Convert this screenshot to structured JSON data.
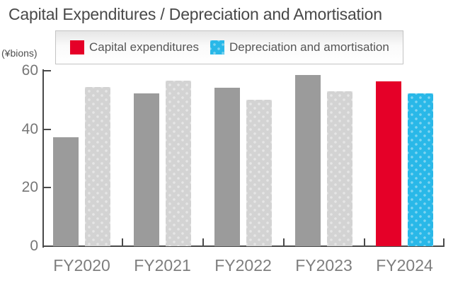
{
  "title": "Capital Expenditures / Depreciation and Amortisation",
  "unit_label": "(¥bions)",
  "colors": {
    "capex": "#e50028",
    "depreciation": "#29b8e8",
    "historical_capex": "#9b9b9b",
    "historical_depreciation": "#d3d3d3",
    "axis": "#4a4a4a",
    "tick_label": "#767676",
    "title_text": "#484848",
    "legend_text": "#555555",
    "legend_border": "#c3c3c3"
  },
  "legend": {
    "items": [
      {
        "label": "Capital expenditures",
        "color": "#e50028"
      },
      {
        "label": "Depreciation and amortisation",
        "color": "#29b8e8"
      }
    ]
  },
  "chart_data": {
    "type": "bar",
    "categories": [
      "FY2020",
      "FY2021",
      "FY2022",
      "FY2023",
      "FY2024"
    ],
    "series": [
      {
        "name": "Capital expenditures",
        "values": [
          37.3,
          52.2,
          54.1,
          58.6,
          56.3
        ]
      },
      {
        "name": "Depreciation and amortisation",
        "values": [
          54.4,
          56.5,
          50.0,
          53.0,
          52.2
        ]
      }
    ],
    "highlight_category": "FY2024",
    "note": "FY2020-FY2023 bars shown in gray (historical); FY2024 shown in legend accent colors",
    "title": "Capital Expenditures / Depreciation and Amortisation",
    "xlabel": "",
    "ylabel": "(¥bions)",
    "ylim": [
      0,
      60
    ],
    "yticks": [
      0,
      20,
      40,
      60
    ],
    "grid": false,
    "legend_position": "top"
  }
}
